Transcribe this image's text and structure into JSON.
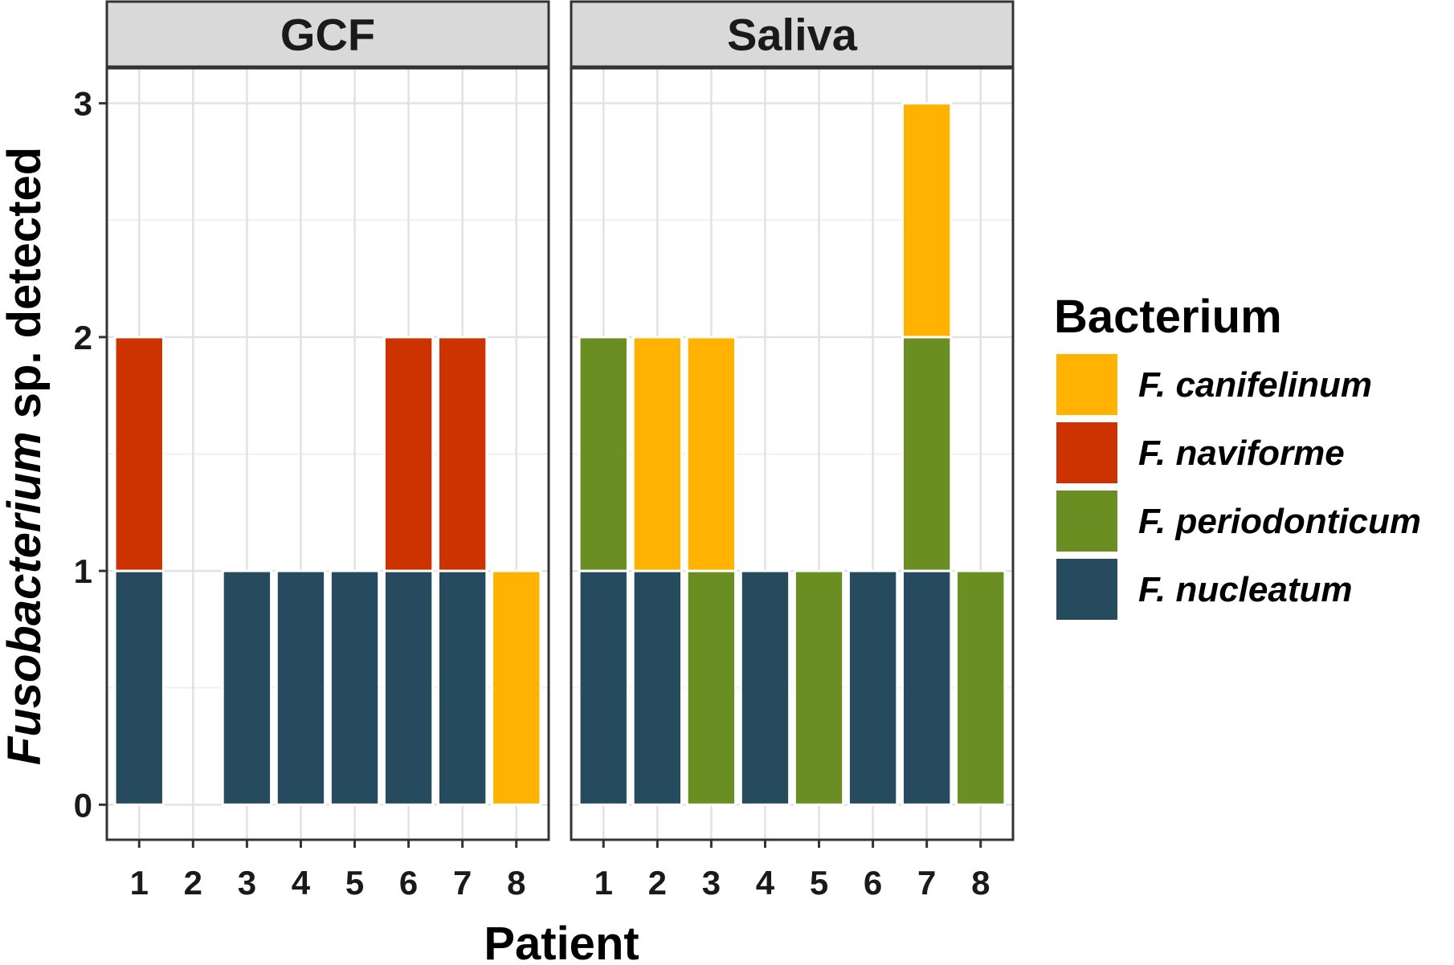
{
  "chart_data": {
    "type": "bar",
    "stacked": true,
    "facets": [
      {
        "label": "GCF",
        "categories": [
          "1",
          "2",
          "3",
          "4",
          "5",
          "6",
          "7",
          "8"
        ],
        "series": [
          {
            "name": "F. nucleatum",
            "values": [
              1,
              0,
              1,
              1,
              1,
              1,
              1,
              0
            ]
          },
          {
            "name": "F. periodonticum",
            "values": [
              0,
              0,
              0,
              0,
              0,
              0,
              0,
              0
            ]
          },
          {
            "name": "F. naviforme",
            "values": [
              1,
              0,
              0,
              0,
              0,
              1,
              1,
              0
            ]
          },
          {
            "name": "F. canifelinum",
            "values": [
              0,
              0,
              0,
              0,
              0,
              0,
              0,
              1
            ]
          }
        ]
      },
      {
        "label": "Saliva",
        "categories": [
          "1",
          "2",
          "3",
          "4",
          "5",
          "6",
          "7",
          "8"
        ],
        "series": [
          {
            "name": "F. nucleatum",
            "values": [
              1,
              1,
              0,
              1,
              0,
              1,
              1,
              0
            ]
          },
          {
            "name": "F. periodonticum",
            "values": [
              1,
              0,
              1,
              0,
              1,
              0,
              1,
              1
            ]
          },
          {
            "name": "F. naviforme",
            "values": [
              0,
              0,
              0,
              0,
              0,
              0,
              0,
              0
            ]
          },
          {
            "name": "F. canifelinum",
            "values": [
              0,
              1,
              1,
              0,
              0,
              0,
              1,
              0
            ]
          }
        ]
      }
    ],
    "ylim": [
      -0.15,
      3.15
    ],
    "yticks": [
      "0",
      "1",
      "2",
      "3"
    ],
    "xlabel": "Patient",
    "ylabel": {
      "italic": "Fusobacterium",
      "rest": " sp. detected"
    },
    "grid": true,
    "legend": {
      "title": "Bacterium",
      "placement": "right",
      "entries": [
        "F. canifelinum",
        "F. naviforme",
        "F. periodonticum",
        "F. nucleatum"
      ]
    },
    "colors": {
      "F. canifelinum": "#FFB300",
      "F. naviforme": "#CC3300",
      "F. periodonticum": "#6B8E23",
      "F. nucleatum": "#264A5E"
    }
  }
}
